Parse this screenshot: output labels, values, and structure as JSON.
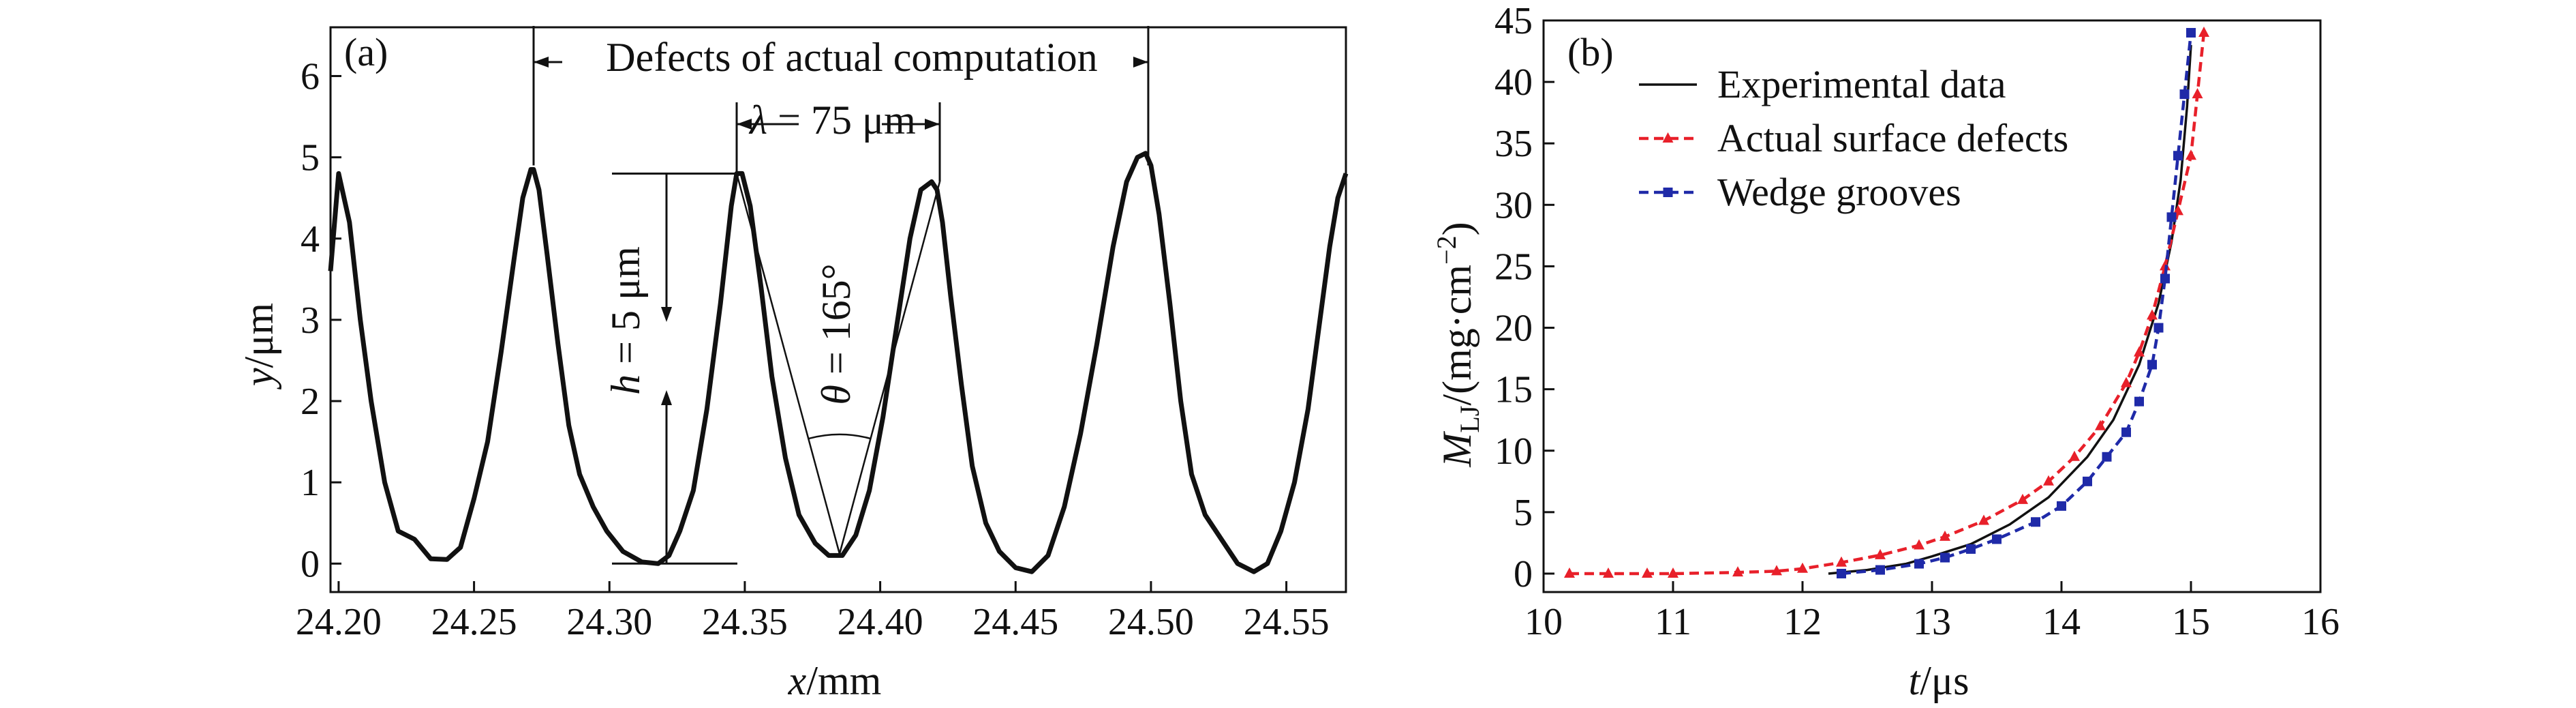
{
  "chart_data": [
    {
      "type": "line",
      "panel_label": "(a)",
      "xlabel_var": "x",
      "xlabel_unit": "/mm",
      "ylabel_var": "y",
      "ylabel_unit": "/μm",
      "xlim": [
        24.197,
        24.572
      ],
      "ylim": [
        -0.35,
        6.6
      ],
      "x_ticks": [
        24.2,
        24.25,
        24.3,
        24.35,
        24.4,
        24.45,
        24.5,
        24.55
      ],
      "x_tick_labels": [
        "24.20",
        "24.25",
        "24.30",
        "24.35",
        "24.40",
        "24.45",
        "24.50",
        "24.55"
      ],
      "y_ticks": [
        0,
        1,
        2,
        3,
        4,
        5,
        6
      ],
      "y_tick_labels": [
        "0",
        "1",
        "2",
        "3",
        "4",
        "5",
        "6"
      ],
      "series": [
        {
          "x": [
            24.197,
            24.2,
            24.204,
            24.208,
            24.212,
            24.217,
            24.222,
            24.228,
            24.234,
            24.24,
            24.245,
            24.25,
            24.255,
            24.26,
            24.265,
            24.268,
            24.271,
            24.272,
            24.274,
            24.277,
            24.281,
            24.285,
            24.289,
            24.294,
            24.299,
            24.305,
            24.312,
            24.318,
            24.322,
            24.326,
            24.331,
            24.336,
            24.341,
            24.345,
            24.347,
            24.349,
            24.352,
            24.356,
            24.36,
            24.365,
            24.37,
            24.376,
            24.381,
            24.386,
            24.391,
            24.396,
            24.401,
            24.406,
            24.411,
            24.415,
            24.419,
            24.421,
            24.423,
            24.426,
            24.43,
            24.434,
            24.439,
            24.444,
            24.45,
            24.456,
            24.462,
            24.468,
            24.474,
            24.48,
            24.486,
            24.491,
            24.495,
            24.498,
            24.5,
            24.503,
            24.507,
            24.511,
            24.515,
            24.52,
            24.526,
            24.532,
            24.538,
            24.543,
            24.548,
            24.553,
            24.558,
            24.562,
            24.566,
            24.569,
            24.572
          ],
          "y": [
            3.6,
            4.8,
            4.2,
            3.0,
            2.0,
            1.0,
            0.4,
            0.3,
            0.06,
            0.05,
            0.2,
            0.8,
            1.5,
            2.6,
            3.8,
            4.5,
            4.85,
            4.85,
            4.6,
            3.8,
            2.7,
            1.7,
            1.1,
            0.7,
            0.4,
            0.15,
            0.02,
            0.0,
            0.1,
            0.4,
            0.9,
            1.9,
            3.2,
            4.4,
            4.8,
            4.8,
            4.4,
            3.4,
            2.3,
            1.3,
            0.6,
            0.25,
            0.1,
            0.1,
            0.35,
            0.9,
            1.8,
            2.9,
            4.0,
            4.6,
            4.7,
            4.6,
            4.2,
            3.3,
            2.2,
            1.2,
            0.5,
            0.15,
            -0.05,
            -0.1,
            0.1,
            0.7,
            1.6,
            2.7,
            3.9,
            4.7,
            5.0,
            5.05,
            4.9,
            4.3,
            3.2,
            2.0,
            1.1,
            0.6,
            0.3,
            0.0,
            -0.1,
            0.0,
            0.4,
            1.0,
            1.9,
            2.9,
            3.9,
            4.5,
            4.8
          ]
        }
      ],
      "annotations": {
        "defects_label": "Defects of actual computation",
        "defect_marker_x": [
          24.272,
          24.499
        ],
        "lambda_symbol": "λ",
        "lambda_value": " = 75 μm",
        "lambda_x": [
          24.347,
          24.422
        ],
        "h_symbol": "h",
        "h_value": " = 5 μm",
        "h_range_y": [
          0.0,
          4.8
        ],
        "theta_symbol": "θ",
        "theta_value": " = 165°",
        "wedge_peaks_x": [
          24.347,
          24.422
        ],
        "wedge_peak_y": 4.8,
        "wedge_vertex": [
          24.385,
          0.12
        ]
      }
    },
    {
      "type": "line",
      "panel_label": "(b)",
      "xlabel_var": "t",
      "xlabel_unit": "/μs",
      "ylabel_var": "M",
      "ylabel_sub": "LJ",
      "ylabel_unit": "/(mg·cm",
      "ylabel_sup": "−2",
      "ylabel_close": ")",
      "xlim": [
        10,
        16
      ],
      "ylim": [
        -1.5,
        45
      ],
      "x_ticks": [
        10,
        11,
        12,
        13,
        14,
        15,
        16
      ],
      "x_tick_labels": [
        "10",
        "11",
        "12",
        "13",
        "14",
        "15",
        "16"
      ],
      "y_ticks": [
        0,
        5,
        10,
        15,
        20,
        25,
        30,
        35,
        40,
        45
      ],
      "y_tick_labels": [
        "0",
        "5",
        "10",
        "15",
        "20",
        "25",
        "30",
        "35",
        "40",
        "45"
      ],
      "legend_position": "top-left",
      "series": [
        {
          "name": "Experimental data",
          "color": "#111111",
          "style": "solid",
          "marker": "none",
          "x": [
            12.2,
            12.5,
            12.8,
            13.0,
            13.3,
            13.6,
            13.9,
            14.2,
            14.4,
            14.6,
            14.75,
            14.85,
            14.92,
            14.97,
            15.0
          ],
          "y": [
            0.0,
            0.3,
            0.8,
            1.4,
            2.4,
            4.0,
            6.2,
            9.5,
            12.5,
            17.0,
            22.0,
            27.0,
            32.0,
            38.0,
            43.0
          ]
        },
        {
          "name": "Actual surface defects",
          "color": "#e8202a",
          "style": "dashed",
          "marker": "triangle",
          "x": [
            10.2,
            10.5,
            10.8,
            11.0,
            11.5,
            11.8,
            12.0,
            12.3,
            12.6,
            12.9,
            13.1,
            13.4,
            13.7,
            13.9,
            14.1,
            14.3,
            14.5,
            14.6,
            14.7,
            14.8,
            14.9,
            15.0,
            15.05,
            15.1
          ],
          "y": [
            0.0,
            0.0,
            0.0,
            0.0,
            0.1,
            0.2,
            0.4,
            0.9,
            1.5,
            2.3,
            3.0,
            4.3,
            6.0,
            7.5,
            9.5,
            12.0,
            15.5,
            18.0,
            21.0,
            25.0,
            29.5,
            34.0,
            39.0,
            44.0
          ]
        },
        {
          "name": "Wedge grooves",
          "color": "#1f2aa8",
          "style": "dashed",
          "marker": "square",
          "x": [
            12.3,
            12.6,
            12.9,
            13.1,
            13.3,
            13.5,
            13.8,
            14.0,
            14.2,
            14.35,
            14.5,
            14.6,
            14.7,
            14.75,
            14.8,
            14.85,
            14.9,
            14.95,
            15.0
          ],
          "y": [
            0.0,
            0.3,
            0.8,
            1.3,
            2.0,
            2.8,
            4.2,
            5.5,
            7.5,
            9.5,
            11.5,
            14.0,
            17.0,
            20.0,
            24.0,
            29.0,
            34.0,
            39.0,
            44.0
          ]
        }
      ]
    }
  ]
}
